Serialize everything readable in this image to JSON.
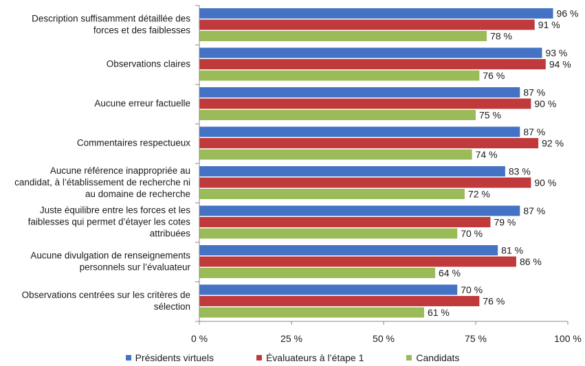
{
  "chart_data": {
    "type": "bar",
    "orientation": "horizontal",
    "categories": [
      [
        "Description suffisamment détaillée des",
        "forces et des faiblesses"
      ],
      [
        "Observations claires"
      ],
      [
        "Aucune erreur factuelle"
      ],
      [
        "Commentaires respectueux"
      ],
      [
        "Aucune référence inappropriée au",
        "candidat, à l’établissement de recherche ni",
        "au domaine de recherche"
      ],
      [
        "Juste équilibre entre les forces et les",
        "faiblesses qui permet d’étayer les cotes",
        "attribuées"
      ],
      [
        "Aucune divulgation de renseignements",
        "personnels sur l’évaluateur"
      ],
      [
        "Observations centrées sur les critères de",
        "sélection"
      ]
    ],
    "series": [
      {
        "name": "Présidents virtuels",
        "color": "#4472C4",
        "values": [
          96,
          93,
          87,
          87,
          83,
          87,
          81,
          70
        ]
      },
      {
        "name": "Évaluateurs à l’étape 1",
        "color": "#C0393B",
        "values": [
          91,
          94,
          90,
          92,
          90,
          79,
          86,
          76
        ]
      },
      {
        "name": "Candidats",
        "color": "#9BBB59",
        "values": [
          78,
          76,
          75,
          74,
          72,
          70,
          64,
          61
        ]
      }
    ],
    "xlim": [
      0,
      100
    ],
    "xticks": [
      0,
      25,
      50,
      75,
      100
    ],
    "tick_suffix": " %",
    "value_suffix": " %",
    "legend_position": "bottom",
    "grid": false
  }
}
